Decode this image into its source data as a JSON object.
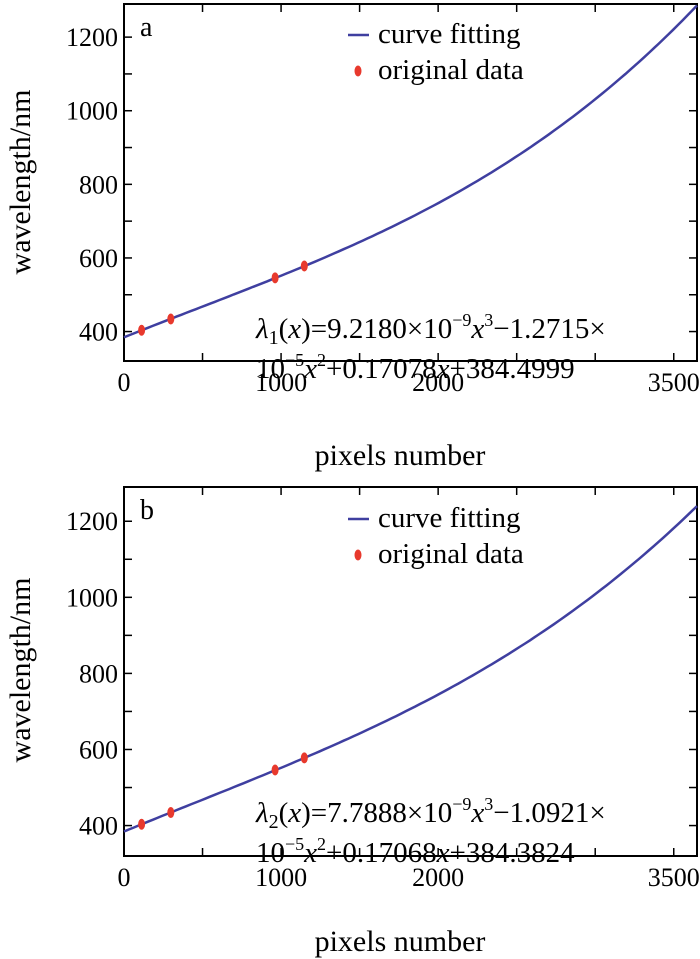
{
  "chart_data": [
    {
      "type": "line",
      "panel_label": "a",
      "xlabel": "pixels number",
      "ylabel": "wavelength/nm",
      "xlim": [
        0,
        3648
      ],
      "ylim": [
        320,
        1290
      ],
      "x_ticks": [
        0,
        1000,
        2000,
        3500
      ],
      "y_ticks": [
        400,
        600,
        800,
        1000,
        1200
      ],
      "legend_position": "top-right",
      "series": [
        {
          "name": "curve fitting",
          "kind": "line",
          "color": "#3f3fa0",
          "fit_coefficients": {
            "a3": 9.218e-09,
            "a2": -1.2715e-05,
            "a1": 0.17078,
            "a0": 384.4999
          },
          "x": [
            0,
            500,
            1000,
            1500,
            2000,
            2500,
            3000,
            3500,
            3648
          ],
          "y": [
            384.5,
            467.3,
            551.0,
            641.6,
            745.1,
            867.4,
            1014.5,
            1192.5,
            1250.7
          ]
        },
        {
          "name": "original data",
          "kind": "scatter",
          "color": "#e8392d",
          "x": [
            112,
            298,
            962,
            1148
          ],
          "y": [
            403.5,
            434.2,
            546.0,
            578.0
          ]
        }
      ],
      "equation": {
        "lhs_symbol": "λ",
        "lhs_sub": "1",
        "line1_part1": "9.2180×10",
        "exp1": "−9",
        "line1_part2": "−1.2715×",
        "line2_part1": "10",
        "exp2": "−5",
        "line2_part2": "+0.17078",
        "line2_part3": "+384.4999"
      }
    },
    {
      "type": "line",
      "panel_label": "b",
      "xlabel": "pixels number",
      "ylabel": "wavelength/nm",
      "xlim": [
        0,
        3648
      ],
      "ylim": [
        320,
        1290
      ],
      "x_ticks": [
        0,
        1000,
        2000,
        3500
      ],
      "y_ticks": [
        400,
        600,
        800,
        1000,
        1200
      ],
      "legend_position": "top-right",
      "series": [
        {
          "name": "curve fitting",
          "kind": "line",
          "color": "#3f3fa0",
          "fit_coefficients": {
            "a3": 7.7888e-09,
            "a2": -1.0921e-05,
            "a1": 0.17068,
            "a0": 384.3824
          },
          "x": [
            0,
            500,
            1000,
            1500,
            2000,
            2500,
            3000,
            3500,
            3648
          ],
          "y": [
            384.4,
            468.0,
            551.8,
            642.1,
            745.5,
            866.6,
            1010.8,
            1185.1,
            1240.6
          ]
        },
        {
          "name": "original data",
          "kind": "scatter",
          "color": "#e8392d",
          "x": [
            112,
            298,
            962,
            1148
          ],
          "y": [
            403.5,
            434.2,
            546.0,
            578.0
          ]
        }
      ],
      "equation": {
        "lhs_symbol": "λ",
        "lhs_sub": "2",
        "line1_part1": "7.7888×10",
        "exp1": "−9",
        "line1_part2": "−1.0921×",
        "line2_part1": "10",
        "exp2": "−5",
        "line2_part2": "+0.17068",
        "line2_part3": "+384.3824"
      }
    }
  ]
}
